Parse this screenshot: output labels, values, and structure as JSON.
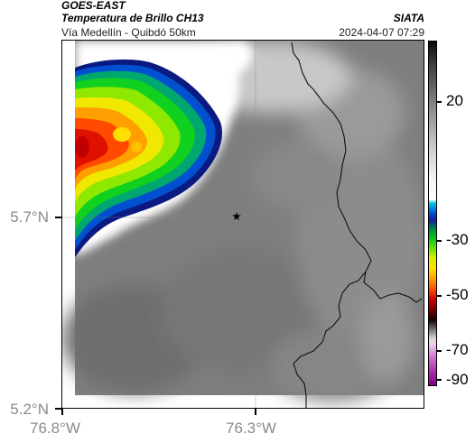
{
  "header": {
    "satellite": "GOES-EAST",
    "product": "Temperatura de Brillo CH13",
    "region": "Vía Medellín - Quibdó 50km",
    "source": "SIATA",
    "datetime": "2024-04-07 07:29"
  },
  "map": {
    "lat_ticks": [
      "5.7°N",
      "5.2°N"
    ],
    "lon_ticks": [
      "76.8°W",
      "76.3°W"
    ],
    "marker_icon": "star-icon"
  },
  "colorbar": {
    "labels": [
      "20",
      "-30",
      "-50",
      "-70",
      "-90"
    ]
  },
  "colors": {
    "gridline": "#888888",
    "border_line": "#000000"
  }
}
